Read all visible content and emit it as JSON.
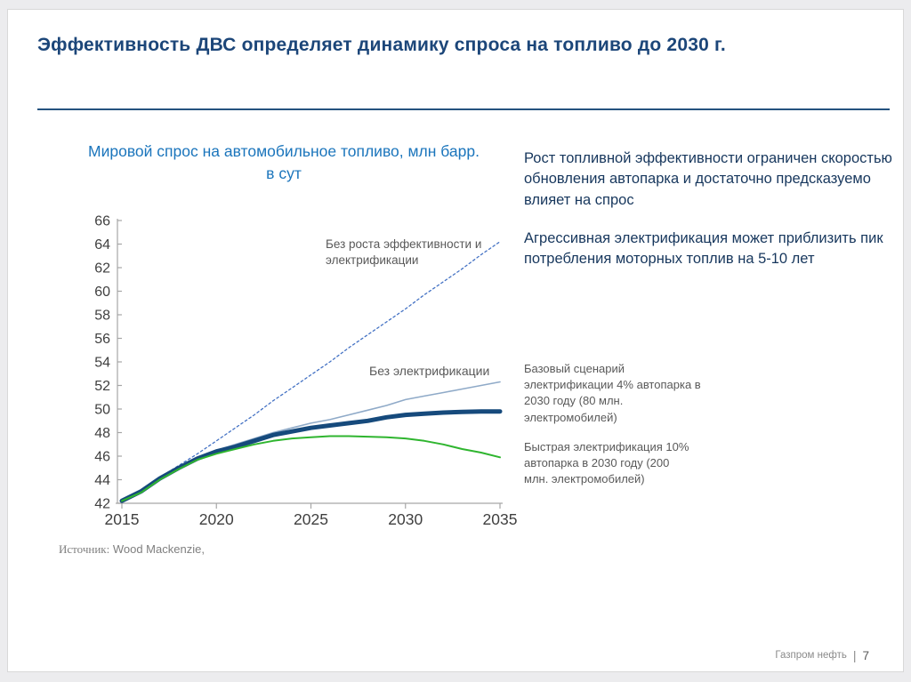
{
  "slide": {
    "title": "Эффективность ДВС определяет динамику спроса на топливо до 2030 г.",
    "source": {
      "label": "Источник:",
      "value": "Wood Mackenzie,"
    },
    "footer": {
      "brand": "Газпром нефть",
      "separator": "|",
      "page_number": "7"
    }
  },
  "right_column": {
    "para1": "Рост топливной эффективности ограничен скоростью обновления автопарка и достаточно предсказуемо влияет на спрос",
    "para2": "Агрессивная электрификация может приблизить пик потребления моторных топлив на 5-10 лет",
    "scenario_base": "Базовый сценарий электрификации 4% автопарка в 2030 году (80 млн. электромобилей)",
    "scenario_fast": "Быстрая электрификация 10% автопарка в 2030 году (200 млн. электромобилей)"
  },
  "chart_data": {
    "type": "line",
    "title": "Мировой спрос на автомобильное топливо, млн барр. в сут",
    "xlabel": "",
    "ylabel": "",
    "xlim": [
      2015,
      2035
    ],
    "ylim": [
      42,
      66
    ],
    "xticks": [
      2015,
      2020,
      2025,
      2030,
      2035
    ],
    "yticks": [
      42,
      44,
      46,
      48,
      50,
      52,
      54,
      56,
      58,
      60,
      62,
      64,
      66
    ],
    "grid": false,
    "legend_position": "inline-annotations",
    "axis_color": "#a6a6a6",
    "tick_label_color": "#3f3f3f",
    "x": [
      2015,
      2016,
      2017,
      2018,
      2019,
      2020,
      2021,
      2022,
      2023,
      2024,
      2025,
      2026,
      2027,
      2028,
      2029,
      2030,
      2031,
      2032,
      2033,
      2034,
      2035
    ],
    "series": [
      {
        "name": "Без роста эффективности и электрификации",
        "color": "#4472c4",
        "width": 1.3,
        "dash": "2.5 3",
        "values": [
          42.2,
          43.1,
          44.2,
          45.2,
          46.2,
          47.3,
          48.4,
          49.5,
          50.7,
          51.8,
          52.9,
          54.0,
          55.2,
          56.3,
          57.4,
          58.5,
          59.7,
          60.8,
          61.9,
          63.1,
          64.2
        ]
      },
      {
        "name": "Без электрификации",
        "color": "#8faac8",
        "width": 1.6,
        "dash": "",
        "values": [
          42.2,
          43.0,
          44.1,
          45.0,
          45.8,
          46.5,
          47.0,
          47.5,
          48.0,
          48.4,
          48.8,
          49.1,
          49.5,
          49.9,
          50.3,
          50.8,
          51.1,
          51.4,
          51.7,
          52.0,
          52.3
        ]
      },
      {
        "name": "Базовый сценарий электрификации 4% автопарка в 2030 году (80 млн. электромобилей)",
        "color": "#164a7c",
        "width": 5,
        "dash": "",
        "values": [
          42.2,
          43.0,
          44.1,
          45.0,
          45.8,
          46.4,
          46.8,
          47.3,
          47.8,
          48.1,
          48.4,
          48.6,
          48.8,
          49.0,
          49.3,
          49.5,
          49.6,
          49.7,
          49.75,
          49.8,
          49.8
        ]
      },
      {
        "name": "Быстрая электрификация 10% автопарка в 2030 году (200 млн. электромобилей)",
        "color": "#2fb52f",
        "width": 2,
        "dash": "",
        "values": [
          42.2,
          42.9,
          44.0,
          44.9,
          45.7,
          46.2,
          46.6,
          47.0,
          47.3,
          47.5,
          47.6,
          47.7,
          47.7,
          47.65,
          47.6,
          47.5,
          47.3,
          47.0,
          46.6,
          46.3,
          45.9
        ]
      }
    ],
    "annotations": [
      {
        "text": "Без роста эффективности и электрификации"
      },
      {
        "text": "Без электрификации"
      }
    ]
  }
}
